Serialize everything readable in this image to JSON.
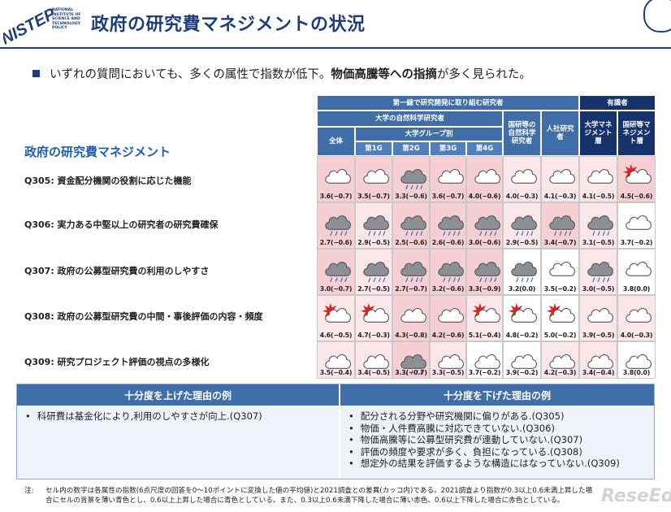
{
  "header": {
    "logo_text": "NISTEP",
    "logo_subtext": [
      "NATIONAL",
      "INSTITUTE OF",
      "SCIENCE AND",
      "TECHNOLOGY",
      "POLICY"
    ],
    "title": "政府の研究費マネジメントの状況"
  },
  "summary": {
    "text_prefix": "いずれの質問においても、多くの属性で指数が低下。",
    "text_bold": "物価高騰等への指摘",
    "text_suffix": "が多く見られた。"
  },
  "section_label": "政府の研究費マネジメント",
  "table_header": {
    "group_main": "第一線で研究開発に取り組む研究者",
    "group_experts": "有識者",
    "univ_researchers": "大学の自然科学研究者",
    "univ_groups": "大学グループ別",
    "all": "全体",
    "g1": "第1G",
    "g2": "第2G",
    "g3": "第3G",
    "g4": "第4G",
    "public": "国研等の自然科学研究者",
    "company": "人社研究者",
    "univ_mgmt": "大学マネジメント層",
    "public_mgmt": "国研等マネジメント層"
  },
  "colors": {
    "pink": "#f6cfd4",
    "light_pink": "#fbe7ea",
    "light_blue": "#dfe9f5",
    "blue": "#b9cfea",
    "white": "#ffffff"
  },
  "questions": [
    {
      "label": "Q305: 資金配分機関の役割に応じた機能",
      "cells": [
        {
          "v": "3.6(−0.7)",
          "bg": "pink",
          "icon": "cloud"
        },
        {
          "v": "3.5(−0.7)",
          "bg": "pink",
          "icon": "cloud"
        },
        {
          "v": "3.3(−0.6)",
          "bg": "pink",
          "icon": "rain"
        },
        {
          "v": "3.6(−0.7)",
          "bg": "pink",
          "icon": "cloud"
        },
        {
          "v": "4.0(−0.6)",
          "bg": "pink",
          "icon": "cloud"
        },
        {
          "v": "4.0(−0.3)",
          "bg": "light_pink",
          "icon": "cloud"
        },
        {
          "v": "4.1(−0.3)",
          "bg": "light_pink",
          "icon": "cloud"
        },
        {
          "v": "4.1(−0.5)",
          "bg": "light_pink",
          "icon": "cloud"
        },
        {
          "v": "4.5(−0.6)",
          "bg": "pink",
          "icon": "burst-cloud"
        }
      ]
    },
    {
      "label": "Q306: 実力ある中堅以上の研究者の研究費確保",
      "cells": [
        {
          "v": "2.7(−0.6)",
          "bg": "pink",
          "icon": "rain"
        },
        {
          "v": "2.9(−0.5)",
          "bg": "light_pink",
          "icon": "rain"
        },
        {
          "v": "2.5(−0.6)",
          "bg": "pink",
          "icon": "rain"
        },
        {
          "v": "2.6(−0.6)",
          "bg": "pink",
          "icon": "rain"
        },
        {
          "v": "3.0(−0.6)",
          "bg": "pink",
          "icon": "rain"
        },
        {
          "v": "2.9(−0.5)",
          "bg": "light_pink",
          "icon": "rain"
        },
        {
          "v": "3.4(−0.7)",
          "bg": "pink",
          "icon": "rain"
        },
        {
          "v": "3.1(−0.5)",
          "bg": "light_pink",
          "icon": "rain"
        },
        {
          "v": "3.7(−0.2)",
          "bg": "white",
          "icon": "cloud"
        }
      ]
    },
    {
      "label": "Q307: 政府の公募型研究費の利用のしやすさ",
      "cells": [
        {
          "v": "3.0(−0.7)",
          "bg": "pink",
          "icon": "rain"
        },
        {
          "v": "2.7(−0.5)",
          "bg": "light_pink",
          "icon": "rain"
        },
        {
          "v": "2.7(−0.7)",
          "bg": "pink",
          "icon": "rain"
        },
        {
          "v": "3.2(−0.6)",
          "bg": "pink",
          "icon": "rain"
        },
        {
          "v": "3.3(−0.9)",
          "bg": "pink",
          "icon": "rain"
        },
        {
          "v": "3.2(0.0)",
          "bg": "white",
          "icon": "rain"
        },
        {
          "v": "3.5(−0.2)",
          "bg": "white",
          "icon": "cloud"
        },
        {
          "v": "3.0(−0.5)",
          "bg": "light_pink",
          "icon": "rain"
        },
        {
          "v": "3.8(0.0)",
          "bg": "white",
          "icon": "cloud"
        }
      ]
    },
    {
      "label": "Q308: 政府の公募型研究費の中間・事後評価の内容・頻度",
      "cells": [
        {
          "v": "4.6(−0.5)",
          "bg": "light_pink",
          "icon": "burst-cloud"
        },
        {
          "v": "4.7(−0.3)",
          "bg": "light_pink",
          "icon": "burst-cloud"
        },
        {
          "v": "4.3(−0.8)",
          "bg": "pink",
          "icon": "cloud"
        },
        {
          "v": "4.2(−0.6)",
          "bg": "pink",
          "icon": "cloud"
        },
        {
          "v": "5.1(−0.4)",
          "bg": "light_pink",
          "icon": "burst-cloud"
        },
        {
          "v": "4.8(−0.2)",
          "bg": "white",
          "icon": "burst-cloud"
        },
        {
          "v": "5.0(−0.2)",
          "bg": "white",
          "icon": "burst-cloud"
        },
        {
          "v": "3.9(−0.5)",
          "bg": "light_pink",
          "icon": "cloud"
        },
        {
          "v": "4.0(−0.3)",
          "bg": "light_pink",
          "icon": "cloud"
        }
      ]
    },
    {
      "label": "Q309: 研究プロジェクト評価の視点の多様化",
      "cells": [
        {
          "v": "3.5(−0.4)",
          "bg": "light_pink",
          "icon": "cloud"
        },
        {
          "v": "3.4(−0.5)",
          "bg": "light_pink",
          "icon": "cloud"
        },
        {
          "v": "3.3(−0.7)",
          "bg": "pink",
          "icon": "rain"
        },
        {
          "v": "3.3(−0.5)",
          "bg": "light_pink",
          "icon": "cloud"
        },
        {
          "v": "3.7(−0.2)",
          "bg": "white",
          "icon": "cloud"
        },
        {
          "v": "3.9(−0.2)",
          "bg": "white",
          "icon": "cloud"
        },
        {
          "v": "4.2(−0.3)",
          "bg": "light_pink",
          "icon": "cloud"
        },
        {
          "v": "3.4(−0.4)",
          "bg": "light_pink",
          "icon": "cloud"
        },
        {
          "v": "3.8(0.0)",
          "bg": "white",
          "icon": "cloud"
        }
      ]
    }
  ],
  "reasons": {
    "up_title": "十分度を上げた理由の例",
    "down_title": "十分度を下げた理由の例",
    "up_items": [
      "科研費は基金化により,利用のしやすさが向上.(Q307)"
    ],
    "down_items": [
      "配分される分野や研究機関に偏りがある.(Q305)",
      "物価・人件費高騰に対応できていない.(Q306)",
      "物価高騰等に公募型研究費が連動していない.(Q307)",
      "評価の頻度や要求が多く、負担になっている.(Q308)",
      "想定外の結果を評価するような構造にはなっていない.(Q309)"
    ]
  },
  "note": {
    "label": "注:",
    "line1": "セル内の数字は各属性の指数(6点尺度の回答を0～10ポイントに変換した値の平均値)と2021調査との差異(カッコ内)である。2021調査より指数が0.3以上0.6未満上昇した場",
    "line2": "合にセルの背景を薄い青色とし、0.6以上上昇した場合に青色としている。また、0.3以上0.6未満下降した場合に薄い赤色、0.6以上下降した場合に赤色としている。"
  },
  "watermark": "ReseEd"
}
